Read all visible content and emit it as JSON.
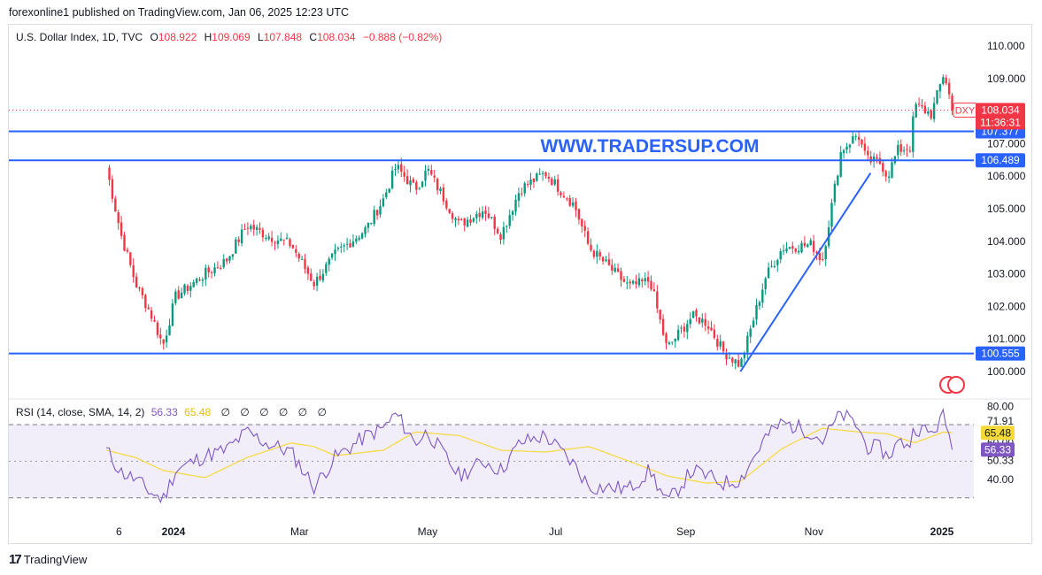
{
  "header": {
    "publisher_line": "forexonline1 published on TradingView.com, Jan 06, 2025 12:23 UTC"
  },
  "legend": {
    "symbol": "U.S. Dollar Index, 1D, TVC",
    "o_label": "O",
    "o_value": "108.922",
    "h_label": "H",
    "h_value": "109.069",
    "l_label": "L",
    "l_value": "107.848",
    "c_label": "C",
    "c_value": "108.034",
    "change": "−0.888 (−0.82%)"
  },
  "watermark": "WWW.TRADERSUP.COM",
  "rsi_legend": {
    "label": "RSI (14, close, SMA, 14, 2)",
    "rsi_value": "56.33",
    "sma_value": "65.48",
    "symbols": [
      "∅",
      "∅",
      "∅",
      "∅",
      "∅",
      "∅"
    ]
  },
  "colors": {
    "up": "#089981",
    "down": "#f23645",
    "level_line": "#2962ff",
    "rsi": "#7e57c2",
    "rsi_sma": "#f5d93b",
    "price_tag": "#f23645"
  },
  "footer": {
    "brand": "TradingView",
    "icon": "tradingview-logo-icon"
  },
  "chart_data": [
    {
      "type": "candlestick",
      "symbol": "DXY",
      "title": "U.S. Dollar Index, 1D, TVC",
      "y_ticks": [
        "110.000",
        "109.000",
        "108.000",
        "107.000",
        "106.000",
        "105.000",
        "104.000",
        "103.000",
        "102.000",
        "101.000",
        "100.000"
      ],
      "y_tick_values": [
        110,
        109,
        108,
        107,
        106,
        105,
        104,
        103,
        102,
        101,
        100
      ],
      "ylim": [
        99.35,
        110.65
      ],
      "x_ticks": [
        "6",
        "2024",
        "Mar",
        "May",
        "Jul",
        "Sep",
        "Nov",
        "2025"
      ],
      "last_price": {
        "symbol": "DXY",
        "value": 108.034,
        "label": "108.034",
        "countdown": "11:36:31"
      },
      "horizontal_levels": [
        {
          "value": 107.377,
          "label": "107.377"
        },
        {
          "value": 106.489,
          "label": "106.489"
        },
        {
          "value": 100.555,
          "label": "100.555"
        }
      ],
      "trendline": {
        "from": {
          "date": "Sep 27, 2024",
          "value": 100.0
        },
        "to": {
          "date": "Nov 28, 2024",
          "value": 106.1
        }
      },
      "close_path": [
        [
          "Nov 30, 2023",
          106.3
        ],
        [
          "Dec 07, 2023",
          104.2
        ],
        [
          "Dec 14, 2023",
          102.7
        ],
        [
          "Dec 21, 2023",
          101.8
        ],
        [
          "Dec 27, 2023",
          100.8
        ],
        [
          "Jan 02, 2024",
          102.3
        ],
        [
          "Jan 16, 2024",
          103.0
        ],
        [
          "Jan 26, 2024",
          103.4
        ],
        [
          "Feb 05, 2024",
          104.5
        ],
        [
          "Feb 14, 2024",
          104.2
        ],
        [
          "Feb 26, 2024",
          103.9
        ],
        [
          "Mar 08, 2024",
          102.7
        ],
        [
          "Mar 18, 2024",
          103.6
        ],
        [
          "Apr 02, 2024",
          104.4
        ],
        [
          "Apr 10, 2024",
          105.3
        ],
        [
          "Apr 16, 2024",
          106.3
        ],
        [
          "Apr 25, 2024",
          105.6
        ],
        [
          "May 01, 2024",
          106.2
        ],
        [
          "May 16, 2024",
          104.5
        ],
        [
          "May 28, 2024",
          105.0
        ],
        [
          "Jun 05, 2024",
          104.2
        ],
        [
          "Jun 14, 2024",
          105.6
        ],
        [
          "Jun 26, 2024",
          106.1
        ],
        [
          "Jul 10, 2024",
          105.1
        ],
        [
          "Jul 17, 2024",
          103.8
        ],
        [
          "Aug 05, 2024",
          102.6
        ],
        [
          "Aug 15, 2024",
          102.8
        ],
        [
          "Aug 23, 2024",
          100.7
        ],
        [
          "Sep 04, 2024",
          101.7
        ],
        [
          "Sep 11, 2024",
          101.5
        ],
        [
          "Sep 19, 2024",
          100.6
        ],
        [
          "Sep 27, 2024",
          100.2
        ],
        [
          "Oct 09, 2024",
          102.9
        ],
        [
          "Oct 17, 2024",
          103.8
        ],
        [
          "Oct 31, 2024",
          103.9
        ],
        [
          "Nov 05, 2024",
          103.4
        ],
        [
          "Nov 14, 2024",
          106.8
        ],
        [
          "Nov 22, 2024",
          107.3
        ],
        [
          "Nov 26, 2024",
          106.5
        ],
        [
          "Dec 03, 2024",
          106.4
        ],
        [
          "Dec 06, 2024",
          106.0
        ],
        [
          "Dec 11, 2024",
          106.8
        ],
        [
          "Dec 17, 2024",
          106.9
        ],
        [
          "Dec 19, 2024",
          108.2
        ],
        [
          "Dec 27, 2024",
          107.9
        ],
        [
          "Jan 02, 2025",
          109.2
        ],
        [
          "Jan 06, 2025",
          108.034
        ]
      ]
    },
    {
      "type": "line",
      "title": "RSI (14, close, SMA, 14, 2)",
      "y_ticks": [
        "80.00",
        "71.91",
        "65.48",
        "60.00",
        "56.33",
        "50.33",
        "40.00"
      ],
      "y_tick_values": [
        80,
        71.91,
        65.48,
        60,
        56.33,
        50.33,
        40
      ],
      "bands": [
        70,
        30
      ],
      "series": [
        {
          "name": "RSI",
          "last_value": 56.33,
          "values": [
            [
              "Nov 30, 2023",
              56
            ],
            [
              "Dec 07, 2023",
              44
            ],
            [
              "Dec 14, 2023",
              40
            ],
            [
              "Dec 21, 2023",
              33
            ],
            [
              "Dec 27, 2023",
              29
            ],
            [
              "Jan 02, 2024",
              45
            ],
            [
              "Jan 16, 2024",
              53
            ],
            [
              "Jan 26, 2024",
              56
            ],
            [
              "Feb 05, 2024",
              66
            ],
            [
              "Feb 14, 2024",
              60
            ],
            [
              "Feb 26, 2024",
              55
            ],
            [
              "Mar 08, 2024",
              36
            ],
            [
              "Mar 18, 2024",
              52
            ],
            [
              "Apr 02, 2024",
              64
            ],
            [
              "Apr 10, 2024",
              68
            ],
            [
              "Apr 16, 2024",
              76
            ],
            [
              "Apr 25, 2024",
              60
            ],
            [
              "May 01, 2024",
              66
            ],
            [
              "May 16, 2024",
              42
            ],
            [
              "May 28, 2024",
              50
            ],
            [
              "Jun 05, 2024",
              45
            ],
            [
              "Jun 14, 2024",
              60
            ],
            [
              "Jun 26, 2024",
              64
            ],
            [
              "Jul 10, 2024",
              48
            ],
            [
              "Jul 17, 2024",
              36
            ],
            [
              "Aug 05, 2024",
              35
            ],
            [
              "Aug 15, 2024",
              45
            ],
            [
              "Aug 23, 2024",
              27
            ],
            [
              "Sep 04, 2024",
              45
            ],
            [
              "Sep 11, 2024",
              42
            ],
            [
              "Sep 19, 2024",
              38
            ],
            [
              "Sep 27, 2024",
              40
            ],
            [
              "Oct 09, 2024",
              63
            ],
            [
              "Oct 17, 2024",
              71
            ],
            [
              "Oct 31, 2024",
              66
            ],
            [
              "Nov 05, 2024",
              61
            ],
            [
              "Nov 14, 2024",
              76
            ],
            [
              "Nov 22, 2024",
              69
            ],
            [
              "Nov 26, 2024",
              58
            ],
            [
              "Dec 03, 2024",
              57
            ],
            [
              "Dec 06, 2024",
              52
            ],
            [
              "Dec 11, 2024",
              60
            ],
            [
              "Dec 17, 2024",
              60
            ],
            [
              "Dec 19, 2024",
              69
            ],
            [
              "Dec 27, 2024",
              65
            ],
            [
              "Jan 02, 2025",
              75
            ],
            [
              "Jan 06, 2025",
              56.33
            ]
          ]
        },
        {
          "name": "RSI-based MA",
          "last_value": 65.48,
          "values": [
            [
              "Nov 30, 2023",
              56
            ],
            [
              "Dec 14, 2023",
              52
            ],
            [
              "Dec 27, 2023",
              45
            ],
            [
              "Jan 16, 2024",
              41
            ],
            [
              "Feb 05, 2024",
              52
            ],
            [
              "Feb 26, 2024",
              60
            ],
            [
              "Mar 08, 2024",
              58
            ],
            [
              "Mar 18, 2024",
              53
            ],
            [
              "Apr 10, 2024",
              56
            ],
            [
              "Apr 25, 2024",
              66
            ],
            [
              "May 16, 2024",
              64
            ],
            [
              "Jun 05, 2024",
              56
            ],
            [
              "Jun 26, 2024",
              55
            ],
            [
              "Jul 17, 2024",
              58
            ],
            [
              "Aug 05, 2024",
              50
            ],
            [
              "Aug 23, 2024",
              42
            ],
            [
              "Sep 11, 2024",
              38
            ],
            [
              "Sep 27, 2024",
              39
            ],
            [
              "Oct 17, 2024",
              57
            ],
            [
              "Nov 05, 2024",
              68
            ],
            [
              "Nov 22, 2024",
              66
            ],
            [
              "Dec 06, 2024",
              65
            ],
            [
              "Dec 19, 2024",
              60
            ],
            [
              "Jan 02, 2025",
              66
            ],
            [
              "Jan 06, 2025",
              65.48
            ]
          ]
        }
      ]
    }
  ]
}
